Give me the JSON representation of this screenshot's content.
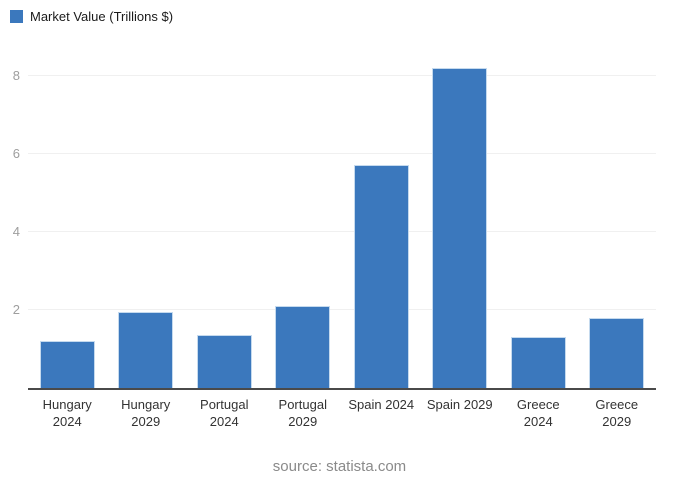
{
  "chart_data": {
    "type": "bar",
    "legend": "Market Value (Trillions $)",
    "legend_position": "top-left",
    "categories": [
      "Hungary 2024",
      "Hungary 2029",
      "Portugal 2024",
      "Portugal 2029",
      "Spain 2024",
      "Spain 2029",
      "Greece 2024",
      "Greece 2029"
    ],
    "category_label_lines": [
      [
        "Hungary",
        "2024"
      ],
      [
        "Hungary",
        "2029"
      ],
      [
        "Portugal",
        "2024"
      ],
      [
        "Portugal",
        "2029"
      ],
      [
        "Spain 2024"
      ],
      [
        "Spain 2029"
      ],
      [
        "Greece",
        "2024"
      ],
      [
        "Greece",
        "2029"
      ]
    ],
    "values": [
      1.2,
      1.95,
      1.35,
      2.1,
      5.7,
      8.2,
      1.3,
      1.8
    ],
    "ylabel": "",
    "xlabel": "",
    "yticks": [
      2,
      4,
      6,
      8
    ],
    "ylim": [
      0,
      8.5
    ],
    "grid": true,
    "bar_color": "#3b78bd"
  },
  "colors": {
    "bar": "#3b78bd",
    "gridline": "#f0f0f0",
    "axis_line": "#4a4a4a",
    "y_tick_text": "#9e9e9e",
    "x_label_text": "#333333",
    "source_text": "#8a8a8a"
  },
  "source": "source: statista.com"
}
